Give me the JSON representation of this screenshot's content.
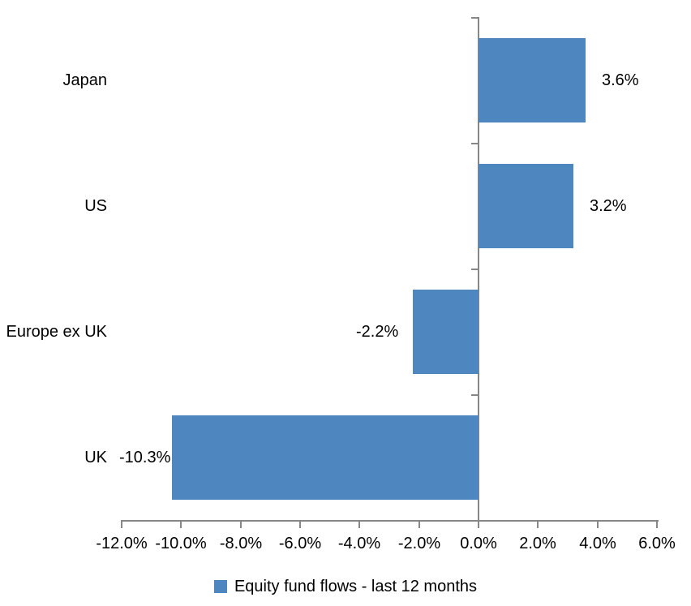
{
  "chart_data": {
    "type": "bar",
    "orientation": "horizontal",
    "title": "",
    "categories": [
      "Japan",
      "US",
      "Europe ex UK",
      "UK"
    ],
    "values": [
      3.6,
      3.2,
      -2.2,
      -10.3
    ],
    "value_labels": [
      "3.6%",
      "3.2%",
      "-2.2%",
      "-10.3%"
    ],
    "series_name": "Equity fund flows - last 12 months",
    "xlim": [
      -12,
      6
    ],
    "x_ticks": [
      -12,
      -10,
      -8,
      -6,
      -4,
      -2,
      0,
      2,
      4,
      6
    ],
    "x_tick_labels": [
      "-12.0%",
      "-10.0%",
      "-8.0%",
      "-6.0%",
      "-4.0%",
      "-2.0%",
      "0.0%",
      "2.0%",
      "4.0%",
      "6.0%"
    ],
    "ylabel": "",
    "xlabel": "",
    "grid": false,
    "legend_position": "bottom",
    "bar_color": "#4E86C0",
    "axis_color": "#878787",
    "text_color": "#000000"
  }
}
